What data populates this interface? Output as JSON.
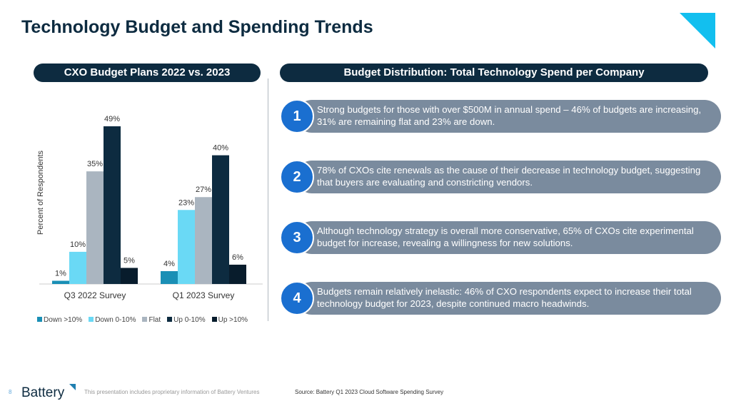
{
  "title": "Technology Budget and Spending Trends",
  "left_header": "CXO Budget Plans 2022 vs. 2023",
  "right_header": "Budget Distribution: Total Technology Spend per Company",
  "chart_data": {
    "type": "bar",
    "ylabel": "Percent of Respondents",
    "categories": [
      "Q3 2022 Survey",
      "Q1 2023 Survey"
    ],
    "ylim": [
      0,
      55
    ],
    "grid": false,
    "legend_position": "bottom",
    "series": [
      {
        "name": "Down >10%",
        "color": "#1a8fb5",
        "values": [
          1,
          4
        ]
      },
      {
        "name": "Down 0-10%",
        "color": "#6ad9f5",
        "values": [
          10,
          23
        ]
      },
      {
        "name": "Flat",
        "color": "#aab5c0",
        "values": [
          35,
          27
        ]
      },
      {
        "name": "Up 0-10%",
        "color": "#0d2b40",
        "values": [
          49,
          40
        ]
      },
      {
        "name": "Up >10%",
        "color": "#081c2c",
        "values": [
          5,
          6
        ]
      }
    ]
  },
  "items": [
    {
      "num": "1",
      "text": "Strong budgets for those with over $500M in annual spend – 46% of budgets are increasing, 31% are remaining flat and 23% are down."
    },
    {
      "num": "2",
      "text": "78% of CXOs cite renewals as the cause of their decrease in technology budget, suggesting that buyers are evaluating and constricting vendors."
    },
    {
      "num": "3",
      "text": "Although technology strategy is overall more conservative, 65% of CXOs cite experimental budget for increase, revealing a willingness for new solutions."
    },
    {
      "num": "4",
      "text": "Budgets remain relatively inelastic: 46% of CXO respondents expect to increase their total technology budget for 2023, despite continued macro headwinds."
    }
  ],
  "footer": {
    "page": "8",
    "logo": "Battery",
    "disclaimer": "This presentation includes proprietary information of Battery Ventures",
    "source": "Source: Battery Q1 2023 Cloud Software Spending Survey"
  }
}
